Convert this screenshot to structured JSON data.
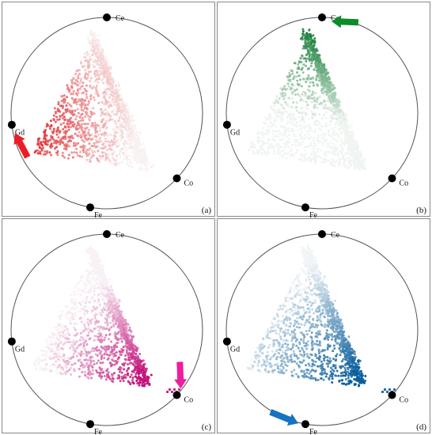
{
  "chart_data": [
    {
      "type": "scatter",
      "panel_label": "(a)",
      "color": "#e0262b",
      "nodes": [
        "Ce",
        "Gd",
        "Co",
        "Fe"
      ],
      "highlighted_node": "Gd",
      "arrow_points_to": "Gd",
      "arrow_color": "#ee1c24",
      "grid": false,
      "legend": "none",
      "point_count": 1700
    },
    {
      "type": "scatter",
      "panel_label": "(b)",
      "color": "#0f7a32",
      "nodes": [
        "Ce",
        "Gd",
        "Co",
        "Fe"
      ],
      "highlighted_node": "Ce",
      "arrow_points_to": "Ce",
      "arrow_color": "#0e8a2c",
      "grid": false,
      "legend": "none",
      "point_count": 1700
    },
    {
      "type": "scatter",
      "panel_label": "(c)",
      "color": "#c2127a",
      "nodes": [
        "Ce",
        "Gd",
        "Co",
        "Fe"
      ],
      "highlighted_node": "Co",
      "arrow_points_to": "Co",
      "arrow_color": "#ec1e9e",
      "grid": false,
      "legend": "none",
      "point_count": 1700
    },
    {
      "type": "scatter",
      "panel_label": "(d)",
      "color": "#0a5e9c",
      "nodes": [
        "Ce",
        "Gd",
        "Co",
        "Fe"
      ],
      "highlighted_node": "Fe",
      "arrow_points_to": "Fe",
      "arrow_color": "#1673c2",
      "grid": false,
      "legend": "none",
      "point_count": 1700
    }
  ]
}
